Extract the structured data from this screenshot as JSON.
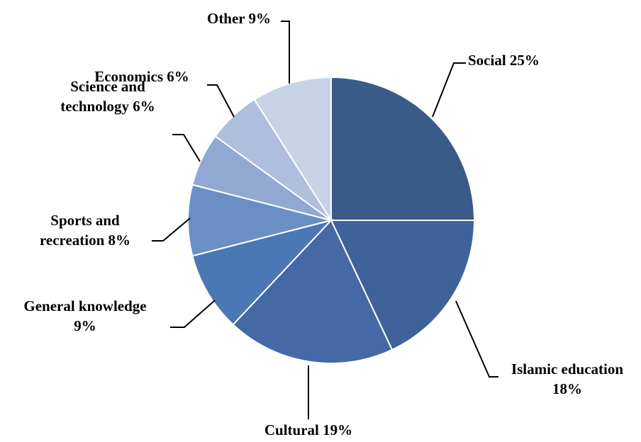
{
  "chart_data": {
    "type": "pie",
    "start_angle_deg": 0,
    "direction": "clockwise",
    "slices": [
      {
        "label": "Social",
        "value": 25,
        "display": "25%",
        "color": "#3a5a88"
      },
      {
        "label": "Islamic education",
        "value": 18,
        "display": "18%",
        "color": "#3e639a"
      },
      {
        "label": "Cultural",
        "value": 19,
        "display": "19%",
        "color": "#4469a4"
      },
      {
        "label": "General knowledge",
        "value": 9,
        "display": "9%",
        "color": "#4a78b4"
      },
      {
        "label": "Sports and recreation",
        "value": 8,
        "display": "8%",
        "color": "#6a8fc4"
      },
      {
        "label": "Science and technology",
        "value": 6,
        "display": "6%",
        "color": "#90a8d2"
      },
      {
        "label": "Economics",
        "value": 6,
        "display": "6%",
        "color": "#aebedd"
      },
      {
        "label": "Other",
        "value": 9,
        "display": "9%",
        "color": "#c8d2e6"
      }
    ]
  }
}
